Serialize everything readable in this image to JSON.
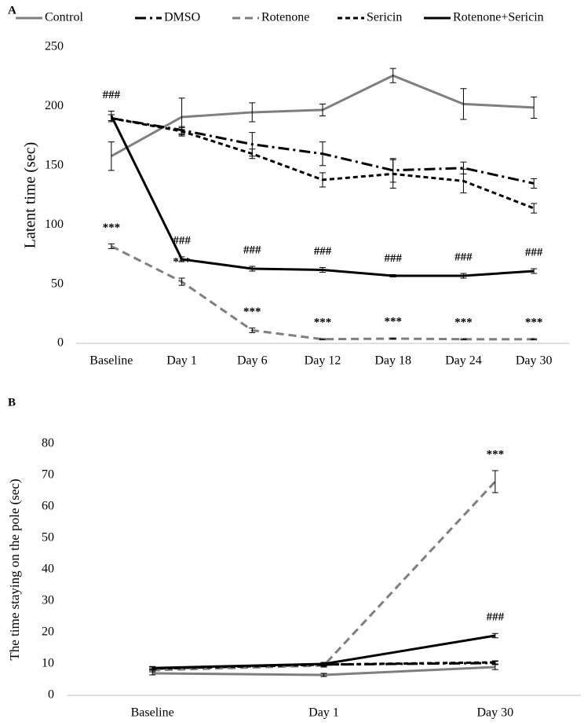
{
  "chart_data": [
    {
      "type": "line",
      "panel": "A",
      "y_label": "Latent time (sec)",
      "categories": [
        "Baseline",
        "Day 1",
        "Day 6",
        "Day 12",
        "Day 18",
        "Day 24",
        "Day 30"
      ],
      "ylim": [
        0,
        250
      ],
      "yticks": [
        0,
        50,
        100,
        150,
        200,
        250
      ],
      "grid": false,
      "series": [
        {
          "name": "Control",
          "color": "#7f7f7f",
          "dash": "none",
          "values": [
            158,
            191,
            195,
            197,
            226,
            202,
            199
          ],
          "errors": [
            12,
            16,
            8,
            5,
            6,
            13,
            9
          ]
        },
        {
          "name": "DMSO",
          "color": "#000000",
          "dash": "14,5,3,5",
          "values": [
            190,
            180,
            168,
            160,
            146,
            148,
            135
          ],
          "errors": [
            3,
            3,
            10,
            10,
            10,
            5,
            4
          ]
        },
        {
          "name": "Rotenone",
          "color": "#7f7f7f",
          "dash": "10,6",
          "values": [
            82,
            52,
            11,
            3.5,
            4,
            3.5,
            3.5
          ],
          "errors": [
            2,
            3,
            2,
            0.5,
            0.5,
            0.5,
            0.5
          ],
          "annotations": [
            "***",
            "***",
            "***",
            "***",
            "***",
            "***",
            "***"
          ]
        },
        {
          "name": "Sericin",
          "color": "#000000",
          "dash": "6,4",
          "values": [
            190,
            179,
            160,
            138,
            143,
            137,
            114
          ],
          "errors": [
            3,
            3,
            4,
            6,
            12,
            10,
            4
          ]
        },
        {
          "name": "Rotenone+Sericin",
          "color": "#000000",
          "dash": "none",
          "values": [
            192,
            71,
            63,
            62,
            57,
            57,
            61
          ],
          "errors": [
            4,
            2,
            2,
            2,
            1,
            2,
            2
          ],
          "annotations": [
            "###",
            "###",
            "###",
            "###",
            "###",
            "###",
            "###"
          ]
        }
      ]
    },
    {
      "type": "line",
      "panel": "B",
      "y_label": "The time staying on the pole (sec)",
      "categories": [
        "Baseline",
        "Day 1",
        "Day 30"
      ],
      "ylim": [
        0,
        80
      ],
      "yticks": [
        0,
        10,
        20,
        30,
        40,
        50,
        60,
        70,
        80
      ],
      "grid": false,
      "series": [
        {
          "color": "#7f7f7f",
          "dash": "none",
          "values": [
            7,
            6.5,
            9
          ],
          "errors": [
            0.5,
            0.5,
            0.8
          ]
        },
        {
          "color": "#000000",
          "dash": "14,5,3,5",
          "values": [
            8.5,
            9.8,
            10.3
          ],
          "errors": [
            0.5,
            0.5,
            0.5
          ]
        },
        {
          "color": "#7f7f7f",
          "dash": "10,6",
          "values": [
            8,
            9.5,
            68
          ],
          "errors": [
            0.5,
            0.5,
            3.5
          ],
          "annotations": [
            null,
            null,
            "***"
          ]
        },
        {
          "color": "#000000",
          "dash": "6,4",
          "values": [
            8.5,
            9.8,
            10.5
          ],
          "errors": [
            0.5,
            0.5,
            0.5
          ]
        },
        {
          "color": "#000000",
          "dash": "none",
          "values": [
            8.7,
            10,
            19
          ],
          "errors": [
            0.5,
            0.5,
            0.7
          ],
          "annotations": [
            null,
            null,
            "###"
          ]
        }
      ]
    }
  ]
}
